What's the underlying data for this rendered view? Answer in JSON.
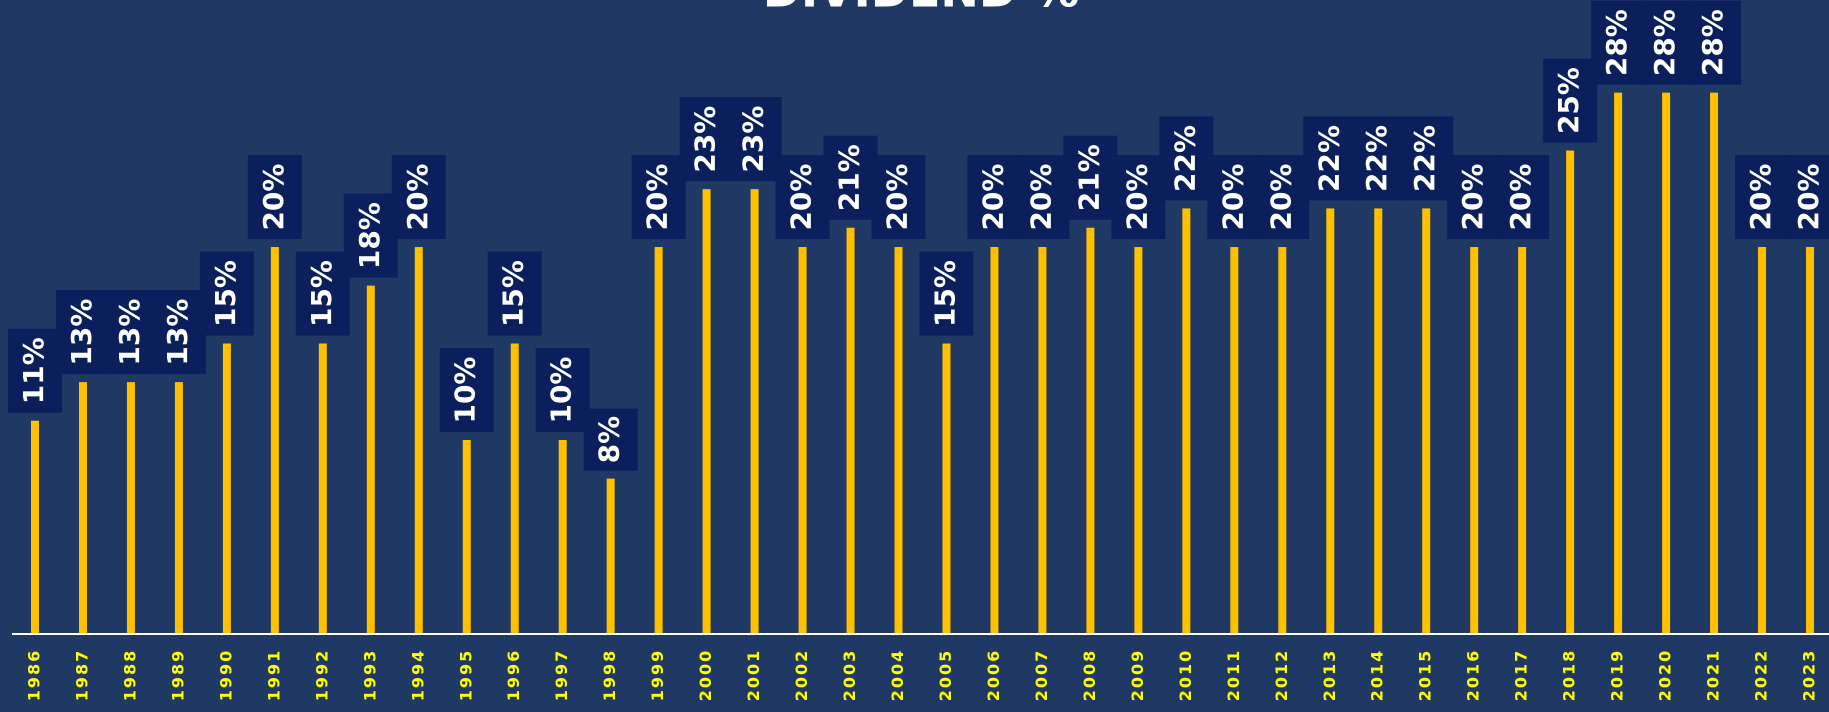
{
  "chart_data": {
    "type": "bar",
    "title": "DIVIDEND %",
    "categories": [
      "1986",
      "1987",
      "1988",
      "1989",
      "1990",
      "1991",
      "1992",
      "1993",
      "1994",
      "1995",
      "1996",
      "1997",
      "1998",
      "1999",
      "2000",
      "2001",
      "2002",
      "2003",
      "2004",
      "2005",
      "2006",
      "2007",
      "2008",
      "2009",
      "2010",
      "2011",
      "2012",
      "2013",
      "2014",
      "2015",
      "2016",
      "2017",
      "2018",
      "2019",
      "2020",
      "2021",
      "2022",
      "2023"
    ],
    "values": [
      11,
      13,
      13,
      13,
      15,
      20,
      15,
      18,
      20,
      10,
      15,
      10,
      8,
      20,
      23,
      23,
      20,
      21,
      20,
      15,
      20,
      20,
      21,
      20,
      22,
      20,
      20,
      22,
      22,
      22,
      20,
      20,
      25,
      28,
      28,
      28,
      20,
      20
    ],
    "value_labels": [
      "11%",
      "13%",
      "13%",
      "13%",
      "15%",
      "20%",
      "15%",
      "18%",
      "20%",
      "10%",
      "15%",
      "10%",
      "8%",
      "20%",
      "23%",
      "23%",
      "20%",
      "21%",
      "20%",
      "15%",
      "20%",
      "20%",
      "21%",
      "20%",
      "22%",
      "20%",
      "20%",
      "22%",
      "22%",
      "22%",
      "20%",
      "20%",
      "25%",
      "28%",
      "28%",
      "28%",
      "20%",
      "20%"
    ],
    "color": "#ffc000",
    "ylim": [
      0,
      32.8
    ]
  }
}
